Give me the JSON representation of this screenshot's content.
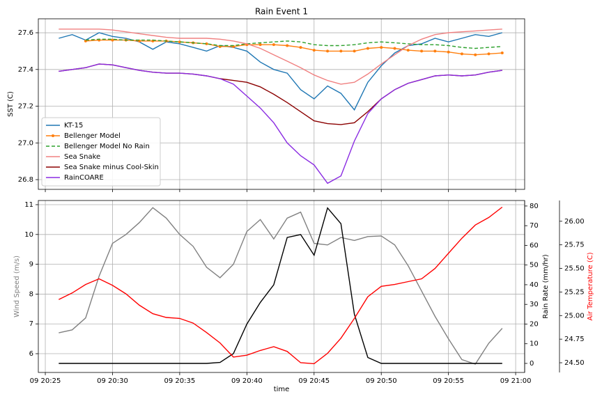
{
  "chart_data": [
    {
      "type": "line",
      "title": "Rain Event 1",
      "ylabel": "SST (C)",
      "x": [
        26,
        27,
        28,
        29,
        30,
        31,
        32,
        33,
        34,
        35,
        36,
        37,
        38,
        39,
        40,
        41,
        42,
        43,
        44,
        45,
        46,
        47,
        48,
        49,
        50,
        51,
        52,
        53,
        54,
        55,
        56,
        57,
        58,
        59
      ],
      "xlim": [
        24.48,
        60.67
      ],
      "ylim": [
        26.747,
        27.676
      ],
      "yticks": [
        26.8,
        {
          "value": 27,
          "label": "27.0"
        },
        27.2,
        27.4,
        27.6
      ],
      "grid": true,
      "legend": "lower left",
      "series": [
        {
          "name": "KT-15",
          "color": "#1f77b4",
          "values": [
            27.57,
            27.59,
            27.56,
            27.6,
            27.58,
            27.57,
            27.55,
            27.51,
            27.55,
            27.54,
            27.52,
            27.5,
            27.53,
            27.52,
            27.5,
            27.44,
            27.4,
            27.38,
            27.29,
            27.24,
            27.31,
            27.27,
            27.18,
            27.33,
            27.42,
            27.49,
            27.53,
            27.54,
            27.57,
            27.55,
            27.57,
            27.59,
            27.58,
            27.6
          ]
        },
        {
          "name": "Bellenger Model",
          "color": "#ff7f0e",
          "marker": "o",
          "values": [
            null,
            null,
            27.555,
            27.56,
            27.56,
            27.56,
            27.555,
            27.555,
            27.555,
            27.55,
            27.545,
            27.54,
            27.525,
            27.525,
            27.535,
            27.535,
            27.535,
            27.53,
            27.52,
            27.505,
            27.5,
            27.5,
            27.5,
            27.515,
            27.52,
            27.515,
            27.505,
            27.5,
            27.5,
            27.495,
            27.485,
            27.48,
            27.485,
            27.49
          ]
        },
        {
          "name": "Bellenger Model No Rain",
          "color": "#2ca02c",
          "dash": true,
          "values": [
            null,
            null,
            27.56,
            27.565,
            27.565,
            27.56,
            27.56,
            27.56,
            27.555,
            27.55,
            27.545,
            27.54,
            27.53,
            27.53,
            27.54,
            27.545,
            27.55,
            27.555,
            27.55,
            27.535,
            27.53,
            27.53,
            27.535,
            27.545,
            27.55,
            27.545,
            27.54,
            27.535,
            27.535,
            27.53,
            27.52,
            27.515,
            27.52,
            27.525
          ]
        },
        {
          "name": "Sea Snake",
          "color": "#f08080",
          "values": [
            27.62,
            27.62,
            27.62,
            27.62,
            27.615,
            27.605,
            27.595,
            27.585,
            27.575,
            27.57,
            27.57,
            27.57,
            27.565,
            27.555,
            27.54,
            27.515,
            27.48,
            27.445,
            27.41,
            27.37,
            27.34,
            27.32,
            27.33,
            27.375,
            27.43,
            27.48,
            27.53,
            27.565,
            27.59,
            27.6,
            27.605,
            27.61,
            27.615,
            27.62
          ]
        },
        {
          "name": "Sea Snake minus Cool-Skin",
          "color": "#8b0000",
          "values": [
            27.39,
            27.4,
            27.41,
            27.43,
            27.425,
            27.41,
            27.395,
            27.385,
            27.38,
            27.38,
            27.375,
            27.365,
            27.35,
            27.34,
            27.33,
            27.305,
            27.265,
            27.22,
            27.17,
            27.12,
            27.105,
            27.1,
            27.11,
            27.17,
            27.24,
            27.29,
            27.325,
            27.345,
            27.365,
            27.37,
            27.365,
            27.37,
            27.385,
            27.395
          ]
        },
        {
          "name": "RainCOARE",
          "color": "#8a2be2",
          "values": [
            27.39,
            27.4,
            27.41,
            27.43,
            27.425,
            27.41,
            27.395,
            27.385,
            27.38,
            27.38,
            27.375,
            27.365,
            27.35,
            27.32,
            27.255,
            27.19,
            27.11,
            27,
            26.93,
            26.88,
            26.78,
            26.82,
            27.01,
            27.16,
            27.24,
            27.29,
            27.325,
            27.345,
            27.365,
            27.37,
            27.365,
            27.37,
            27.385,
            27.395
          ]
        }
      ]
    },
    {
      "type": "line",
      "xlabel": "time",
      "ylabel": "Wind Speed (m/s)",
      "y2label": "Rain Rate (mm/hr)",
      "y3label": "Air Temperature (C)",
      "ylabel_color": "#808080",
      "y2label_color": "#000000",
      "y3label_color": "#ff0000",
      "x": [
        26,
        27,
        28,
        29,
        30,
        31,
        32,
        33,
        34,
        35,
        36,
        37,
        38,
        39,
        40,
        41,
        42,
        43,
        44,
        45,
        46,
        47,
        48,
        49,
        50,
        51,
        52,
        53,
        54,
        55,
        56,
        57,
        58,
        59
      ],
      "xlim": [
        24.48,
        60.67
      ],
      "xticks": [
        {
          "value": 25,
          "label": "09 20:25"
        },
        {
          "value": 30,
          "label": "09 20:30"
        },
        {
          "value": 35,
          "label": "09 20:35"
        },
        {
          "value": 40,
          "label": "09 20:40"
        },
        {
          "value": 45,
          "label": "09 20:45"
        },
        {
          "value": 50,
          "label": "09 20:50"
        },
        {
          "value": 55,
          "label": "09 20:55"
        },
        {
          "value": 60,
          "label": "09 21:00"
        }
      ],
      "ylim": [
        5.37,
        11.14
      ],
      "yticks": [
        6,
        7,
        8,
        9,
        10,
        11
      ],
      "y2lim": [
        -4.6,
        82.8
      ],
      "y2ticks": [
        0,
        10,
        20,
        30,
        40,
        50,
        60,
        70,
        80
      ],
      "y3lim": [
        24.397,
        26.22
      ],
      "y3ticks": [
        {
          "value": 24.5,
          "label": "24.50"
        },
        {
          "value": 24.75,
          "label": "24.75"
        },
        {
          "value": 25,
          "label": "25.00"
        },
        {
          "value": 25.25,
          "label": "25.25"
        },
        {
          "value": 25.5,
          "label": "25.50"
        },
        {
          "value": 25.75,
          "label": "25.75"
        },
        {
          "value": 26,
          "label": "26.00"
        }
      ],
      "grid": true,
      "series": [
        {
          "color": "#808080",
          "values": [
            6.7,
            6.8,
            7.2,
            8.6,
            9.7,
            10,
            10.4,
            10.9,
            10.55,
            10,
            9.6,
            8.9,
            8.55,
            9,
            10.1,
            10.5,
            9.85,
            10.55,
            10.75,
            9.7,
            9.65,
            9.9,
            9.8,
            9.93,
            9.95,
            9.65,
            8.95,
            8.1,
            7.25,
            6.5,
            5.8,
            5.65,
            6.35,
            6.85
          ]
        },
        {
          "color": "#000000",
          "axis": "y2",
          "values": [
            0,
            0,
            0,
            0,
            0,
            0,
            0,
            0,
            0,
            0,
            0,
            0,
            0.5,
            5,
            20,
            31,
            40,
            64,
            65.5,
            55,
            79,
            71,
            25,
            3,
            0,
            0,
            0,
            0,
            0,
            0,
            0,
            0,
            0,
            0
          ]
        },
        {
          "color": "#ff0000",
          "axis": "y3",
          "values": [
            25.17,
            25.24,
            25.33,
            25.39,
            25.32,
            25.23,
            25.11,
            25.02,
            24.98,
            24.97,
            24.92,
            24.82,
            24.71,
            24.56,
            24.58,
            24.63,
            24.67,
            24.62,
            24.5,
            24.49,
            24.6,
            24.76,
            24.97,
            25.2,
            25.31,
            25.33,
            25.36,
            25.39,
            25.5,
            25.66,
            25.82,
            25.96,
            26.04,
            26.15
          ]
        }
      ]
    }
  ]
}
